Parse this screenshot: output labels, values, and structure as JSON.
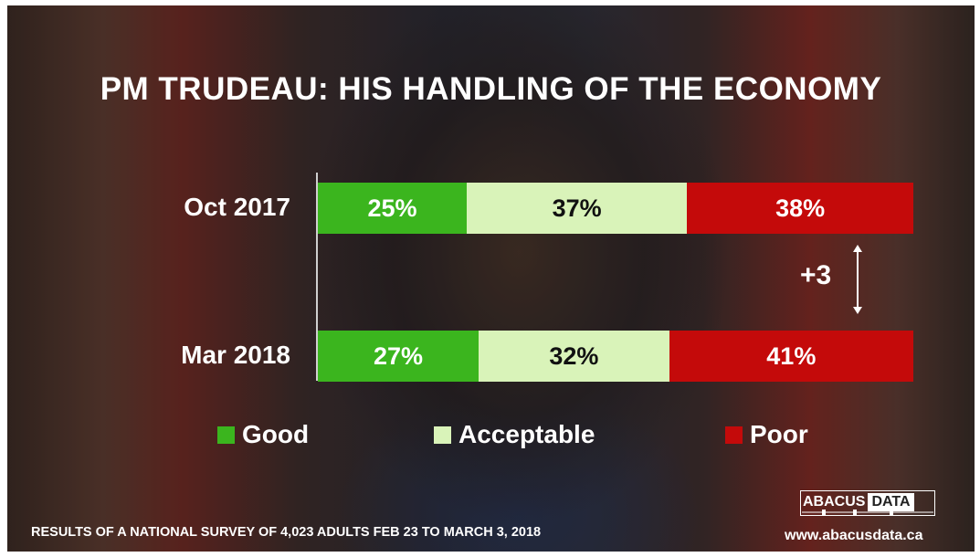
{
  "chart_data": {
    "type": "bar",
    "orientation": "horizontal",
    "stacked": true,
    "title": "PM TRUDEAU: HIS HANDLING OF THE ECONOMY",
    "categories": [
      "Oct 2017",
      "Mar 2018"
    ],
    "series": [
      {
        "name": "Good",
        "values": [
          25,
          27
        ],
        "labels": [
          "25%",
          "27%"
        ],
        "color": "#3bb51e"
      },
      {
        "name": "Acceptable",
        "values": [
          37,
          32
        ],
        "labels": [
          "37%",
          "32%"
        ],
        "color": "#d9f3b9"
      },
      {
        "name": "Poor",
        "values": [
          38,
          41
        ],
        "labels": [
          "38%",
          "41%"
        ],
        "color": "#c40a0a"
      }
    ],
    "annotation": "+3",
    "legend": "bottom",
    "grid": false
  },
  "footnote": "RESULTS OF A NATIONAL SURVEY OF 4,023 ADULTS FEB 23 TO MARCH 3, 2018",
  "logo": {
    "word1": "ABACUS",
    "word2": "DATA"
  },
  "website": "www.abacusdata.ca"
}
